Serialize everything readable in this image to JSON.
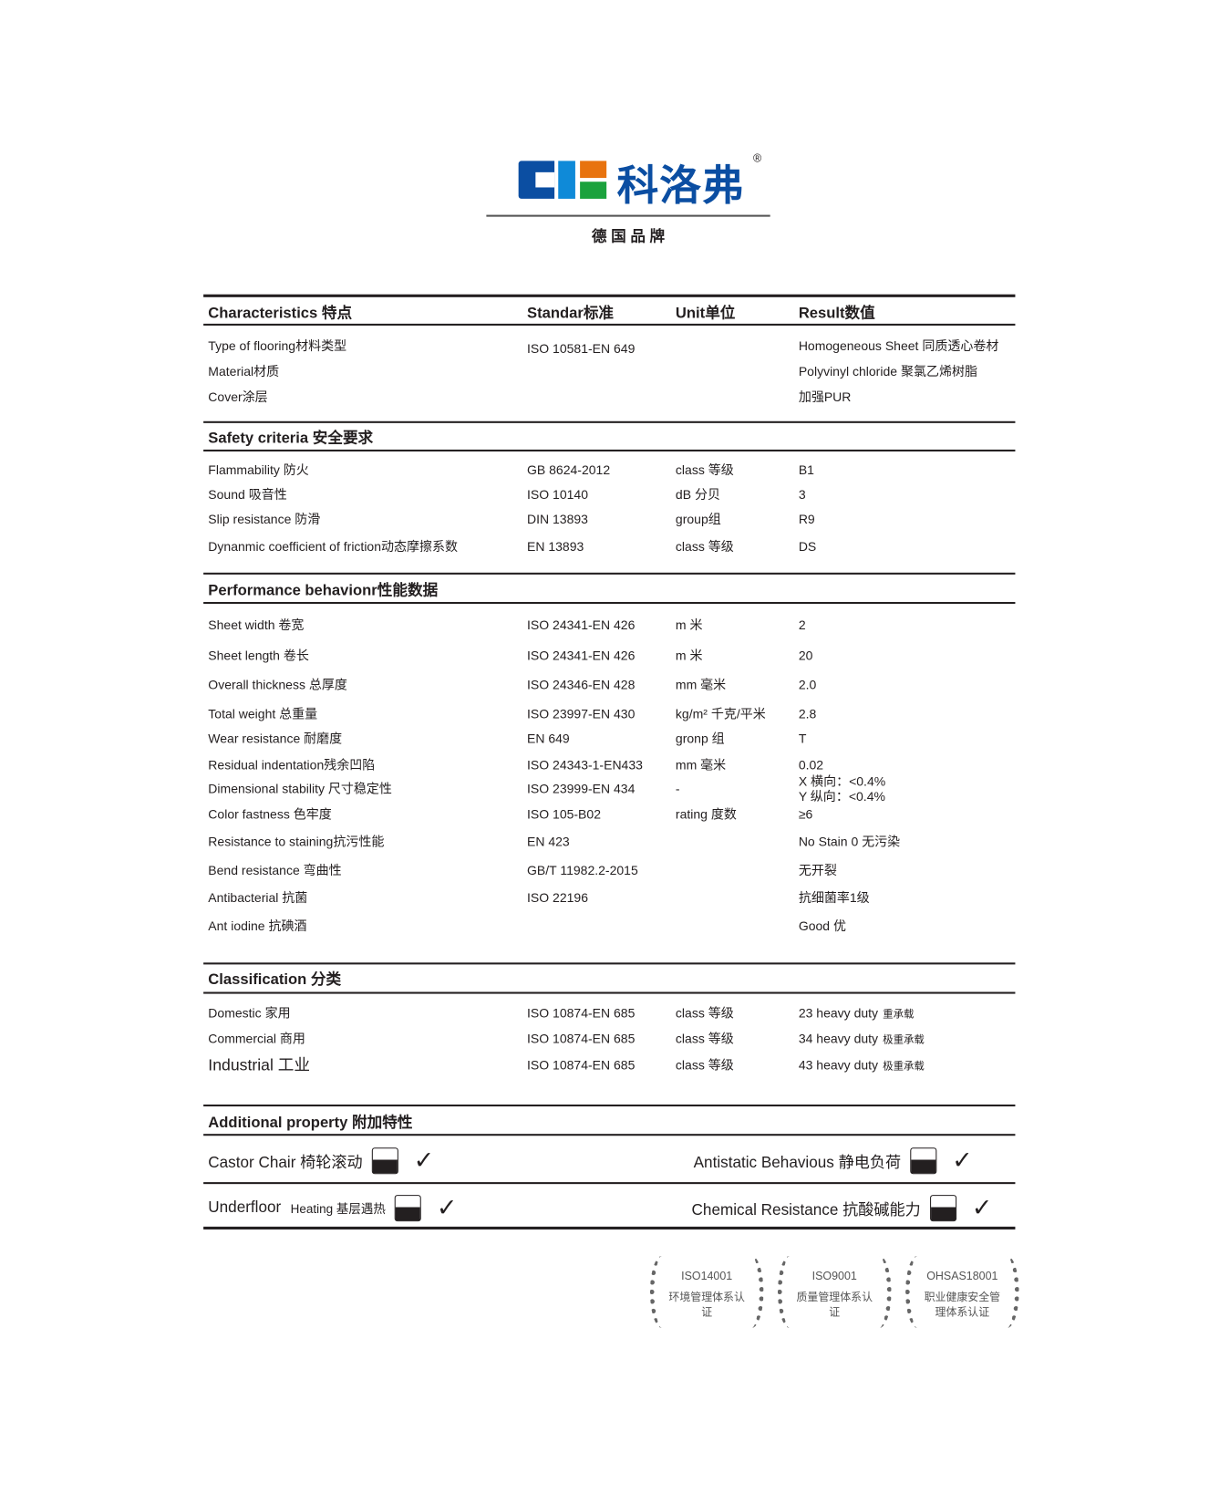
{
  "logo": {
    "brand_cn": "科洛弗",
    "registered": "®",
    "tagline": "德 国 品 牌",
    "colors": {
      "navy": "#0b4ea2",
      "blue": "#0f8ad8",
      "orange": "#e8730f",
      "green": "#1ba23d"
    }
  },
  "table_header": {
    "characteristics": "Characteristics 特点",
    "standard": "Standar标准",
    "unit": "Unit单位",
    "result": "Result数值"
  },
  "general_rows": [
    {
      "name": "Type of flooring材料类型",
      "standard": "ISO  10581-EN 649",
      "unit": "",
      "result": "Homogeneous Sheet 同质透心卷材"
    },
    {
      "name": "Material材质",
      "standard": "",
      "unit": "",
      "result": "Polyvinyl chloride 聚氯乙烯树脂"
    },
    {
      "name": "Cover涂层",
      "standard": "",
      "unit": "",
      "result": "加强PUR"
    }
  ],
  "safety": {
    "title": "Safety criteria 安全要求",
    "rows": [
      {
        "name": "Flammability 防火",
        "standard": "GB 8624-2012",
        "unit": "class 等级",
        "result": "B1"
      },
      {
        "name": "Sound 吸音性",
        "standard": "ISO 10140",
        "unit": "dB 分贝",
        "result": "3"
      },
      {
        "name": "Slip resistance 防滑",
        "standard": "DIN 13893",
        "unit": "group组",
        "result": "R9"
      },
      {
        "name": "Dynanmic coefficient of friction动态摩擦系数",
        "standard": "EN 13893",
        "unit": "class 等级",
        "result": "DS"
      }
    ]
  },
  "performance": {
    "title": "Performance behavionr性能数据",
    "rows": [
      {
        "name": "Sheet width 卷宽",
        "standard": "ISO 24341-EN 426",
        "unit": "m 米",
        "result": "2"
      },
      {
        "name": "Sheet length 卷长",
        "standard": "ISO 24341-EN 426",
        "unit": "m 米",
        "result": "20"
      },
      {
        "name": "Overall thickness 总厚度",
        "standard": "ISO 24346-EN 428",
        "unit": "mm 毫米",
        "result": "2.0"
      },
      {
        "name": "Total weight 总重量",
        "standard": "ISO 23997-EN 430",
        "unit": "kg/m² 千克/平米",
        "result": "2.8"
      },
      {
        "name": "Wear resistance 耐磨度",
        "standard": "EN 649",
        "unit": "gronp 组",
        "result": "T"
      },
      {
        "name": "Residual indentation残余凹陷",
        "standard": "ISO 24343-1-EN433",
        "unit": "mm 毫米",
        "result": "0.02"
      },
      {
        "name": "Dimensional stability 尺寸稳定性",
        "standard": "ISO 23999-EN 434",
        "unit": "-",
        "result": "X 横向：<0.4%",
        "result2": "Y 纵向：<0.4%"
      },
      {
        "name": "Color fastness 色牢度",
        "standard": "ISO 105-B02",
        "unit": "rating 度数",
        "result": "≥6"
      },
      {
        "name": "Resistance to staining抗污性能",
        "standard": "EN 423",
        "unit": "",
        "result": "No Stain 0 无污染"
      },
      {
        "name": "Bend resistance 弯曲性",
        "standard": "GB/T 11982.2-2015",
        "unit": "",
        "result": "无开裂"
      },
      {
        "name": "Antibacterial 抗菌",
        "standard": "ISO 22196",
        "unit": "",
        "result": "抗细菌率1级"
      },
      {
        "name": "Ant iodine 抗碘酒",
        "standard": "",
        "unit": "",
        "result": "Good 优"
      }
    ]
  },
  "classification": {
    "title": "Classification 分类",
    "rows": [
      {
        "name": "Domestic 家用",
        "standard": "ISO 10874-EN 685",
        "unit": "class 等级",
        "result": "23 heavy duty",
        "result_cn": "重承载"
      },
      {
        "name": "Commercial 商用",
        "standard": "ISO 10874-EN 685",
        "unit": "class 等级",
        "result": "34 heavy duty",
        "result_cn": "极重承载"
      },
      {
        "name": "Industrial 工业",
        "standard": "ISO 10874-EN 685",
        "unit": "class 等级",
        "result": "43 heavy duty",
        "result_cn": "极重承载"
      }
    ]
  },
  "additional": {
    "title": "Additional property 附加特性",
    "check": "✓",
    "items": [
      {
        "label": "Castor Chair 椅轮滚动",
        "icon": "castor-chair-icon"
      },
      {
        "label": "Antistatic Behavious 静电负荷",
        "icon": "antistatic-icon"
      },
      {
        "label": "Underfloor",
        "label_small": "Heating 基层遇热",
        "icon": "underfloor-heating-icon"
      },
      {
        "label": "Chemical Resistance 抗酸碱能力",
        "icon": "chemical-resistance-icon"
      }
    ]
  },
  "certifications": [
    {
      "code": "ISO14001",
      "desc": "环境管理体系认证"
    },
    {
      "code": "ISO9001",
      "desc": "质量管理体系认证"
    },
    {
      "code": "OHSAS18001",
      "desc": "职业健康安全管理体系认证"
    }
  ]
}
